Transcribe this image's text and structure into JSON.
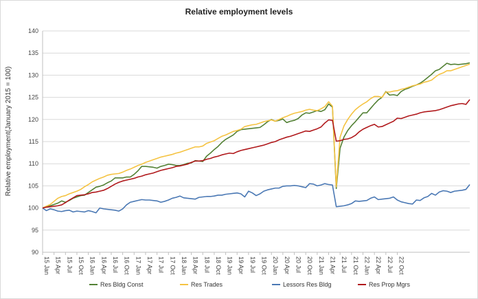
{
  "chart_data": {
    "type": "line",
    "title": "Relative employment levels",
    "xlabel": "",
    "ylabel": "Relative employment(January 2015 = 100)",
    "ylim": [
      90,
      140
    ],
    "yticks": [
      "90",
      "95",
      "100",
      "105",
      "110",
      "115",
      "120",
      "125",
      "130",
      "135",
      "140"
    ],
    "xticks": [
      "15 Jan",
      "15 Apr",
      "15 Jul",
      "15 Oct",
      "16 Jan",
      "16 Apr",
      "16 Jul",
      "16 Oct",
      "17 Jan",
      "17 Apr",
      "17 Jul",
      "17 Oct",
      "18 Jan",
      "18 Apr",
      "18 Jul",
      "18 Oct",
      "19 Jan",
      "19 Apr",
      "19 Jul",
      "19 Oct",
      "20 Jan",
      "20 Apr",
      "20 Jul",
      "20 Oct",
      "21 Jan",
      "21 Apr",
      "21 Jul",
      "21 Oct",
      "22 Jan",
      "22 Apr",
      "22 Jul",
      "22 Oct"
    ],
    "x_start": "2015-01",
    "x_end": "2022-10",
    "grid": "horizontal",
    "legend": "bottom",
    "series": [
      {
        "name": "Res Bldg Const",
        "color": "#538135",
        "values": [
          100,
          100.3,
          100.5,
          100.8,
          101.1,
          101.6,
          101.3,
          101.7,
          102.2,
          102.5,
          102.8,
          102.9,
          103.5,
          104.1,
          104.7,
          104.9,
          105.2,
          105.7,
          106.1,
          106.8,
          106.8,
          106.8,
          107.0,
          107.0,
          107.6,
          108.4,
          109.4,
          109.4,
          109.3,
          109.2,
          109.0,
          109.4,
          109.6,
          109.9,
          109.8,
          109.6,
          109.6,
          109.8,
          110.1,
          110.2,
          110.7,
          110.6,
          110.5,
          111.7,
          112.4,
          113.2,
          113.9,
          114.8,
          115.5,
          116.0,
          116.5,
          117.3,
          117.7,
          117.8,
          117.9,
          118.0,
          118.1,
          118.2,
          118.8,
          119.5,
          120.0,
          119.6,
          119.8,
          120.1,
          119.3,
          119.6,
          119.8,
          120.2,
          121.0,
          121.5,
          121.4,
          121.7,
          122.0,
          121.8,
          122.2,
          123.5,
          122.8,
          104.4,
          113.5,
          116.0,
          117.5,
          118.6,
          119.5,
          120.5,
          121.5,
          121.5,
          122.5,
          123.5,
          124.4,
          125.0,
          126.3,
          125.5,
          125.6,
          125.4,
          126.3,
          126.8,
          127.1,
          127.5,
          127.8,
          128.2,
          128.8,
          129.5,
          130.2,
          131.0,
          131.3,
          132.0,
          132.7,
          132.4,
          132.5,
          132.4,
          132.5,
          132.6,
          132.8
        ]
      },
      {
        "name": "Res Trades",
        "color": "#f5c342",
        "values": [
          100,
          100.4,
          100.8,
          101.5,
          102.2,
          102.6,
          102.8,
          103.2,
          103.5,
          103.8,
          104.2,
          104.8,
          105.3,
          105.9,
          106.3,
          106.7,
          107.0,
          107.4,
          107.6,
          107.7,
          107.8,
          108.1,
          108.5,
          108.8,
          109.2,
          109.6,
          109.9,
          110.3,
          110.6,
          110.9,
          111.2,
          111.5,
          111.7,
          111.9,
          112.1,
          112.4,
          112.6,
          112.9,
          113.2,
          113.5,
          113.8,
          113.8,
          114.0,
          114.6,
          114.9,
          115.2,
          115.7,
          116.2,
          116.5,
          116.9,
          117.3,
          117.5,
          117.8,
          118.4,
          118.6,
          118.8,
          118.9,
          119.2,
          119.5,
          119.7,
          119.9,
          119.6,
          120.0,
          120.4,
          120.7,
          121.1,
          121.4,
          121.6,
          121.8,
          122.1,
          122.3,
          122.1,
          122.0,
          122.4,
          122.9,
          124.0,
          123.0,
          104.8,
          116.0,
          118.5,
          120.0,
          121.2,
          122.2,
          122.9,
          123.5,
          124.0,
          124.7,
          125.2,
          125.2,
          125.0,
          126.2,
          126.2,
          126.4,
          126.5,
          126.8,
          127.0,
          127.3,
          127.6,
          127.8,
          128.0,
          128.4,
          128.6,
          128.9,
          129.6,
          130.2,
          130.5,
          131.0,
          131.0,
          131.3,
          131.6,
          131.9,
          132.2,
          132.5
        ]
      },
      {
        "name": "Lessors Res Bldg",
        "color": "#4a78b4",
        "values": [
          100,
          99.4,
          99.8,
          99.6,
          99.3,
          99.2,
          99.4,
          99.5,
          99.1,
          99.3,
          99.2,
          99.1,
          99.4,
          99.2,
          98.9,
          100.0,
          99.8,
          99.7,
          99.6,
          99.5,
          99.3,
          99.8,
          100.7,
          101.3,
          101.5,
          101.7,
          101.9,
          101.8,
          101.8,
          101.7,
          101.6,
          101.3,
          101.5,
          101.8,
          102.2,
          102.4,
          102.7,
          102.3,
          102.2,
          102.1,
          102.0,
          102.4,
          102.5,
          102.6,
          102.6,
          102.7,
          102.9,
          102.9,
          103.1,
          103.2,
          103.3,
          103.4,
          103.2,
          102.5,
          103.8,
          103.4,
          102.8,
          103.2,
          103.8,
          104.1,
          104.3,
          104.5,
          104.5,
          104.9,
          105.0,
          105.0,
          105.1,
          105.0,
          104.8,
          104.6,
          105.5,
          105.4,
          105.0,
          105.2,
          105.5,
          105.3,
          105.2,
          100.3,
          100.4,
          100.5,
          100.7,
          101.0,
          101.6,
          101.5,
          101.6,
          101.7,
          102.2,
          102.5,
          101.9,
          102.0,
          102.1,
          102.2,
          102.5,
          101.8,
          101.4,
          101.2,
          101.0,
          100.9,
          101.8,
          101.7,
          102.3,
          102.6,
          103.3,
          102.9,
          103.6,
          103.9,
          103.8,
          103.5,
          103.8,
          103.9,
          104.0,
          104.2,
          105.3
        ]
      },
      {
        "name": "Res Prop Mgrs",
        "color": "#b0181b",
        "values": [
          100,
          100.2,
          100.3,
          100.4,
          100.5,
          100.7,
          101.2,
          101.8,
          102.3,
          102.8,
          102.9,
          103.0,
          103.2,
          103.5,
          103.6,
          103.8,
          104.0,
          104.4,
          104.9,
          105.4,
          105.8,
          106.1,
          106.3,
          106.5,
          106.7,
          107.0,
          107.2,
          107.5,
          107.7,
          107.9,
          108.2,
          108.5,
          108.7,
          108.9,
          109.1,
          109.4,
          109.5,
          109.7,
          109.9,
          110.3,
          110.6,
          110.6,
          110.7,
          111.0,
          111.2,
          111.5,
          111.7,
          112.0,
          112.2,
          112.4,
          112.3,
          112.7,
          113.0,
          113.2,
          113.4,
          113.6,
          113.8,
          114.0,
          114.2,
          114.5,
          114.8,
          115.0,
          115.4,
          115.7,
          116.0,
          116.2,
          116.5,
          116.8,
          117.1,
          117.4,
          117.3,
          117.6,
          117.9,
          118.3,
          119.2,
          119.9,
          119.8,
          115.1,
          115.2,
          115.5,
          115.6,
          115.9,
          116.4,
          117.2,
          117.8,
          118.2,
          118.6,
          118.9,
          118.3,
          118.4,
          118.8,
          119.2,
          119.6,
          120.3,
          120.2,
          120.5,
          120.8,
          121.0,
          121.2,
          121.5,
          121.7,
          121.8,
          121.9,
          122.0,
          122.2,
          122.5,
          122.8,
          123.1,
          123.3,
          123.5,
          123.6,
          123.4,
          124.5
        ]
      }
    ]
  }
}
